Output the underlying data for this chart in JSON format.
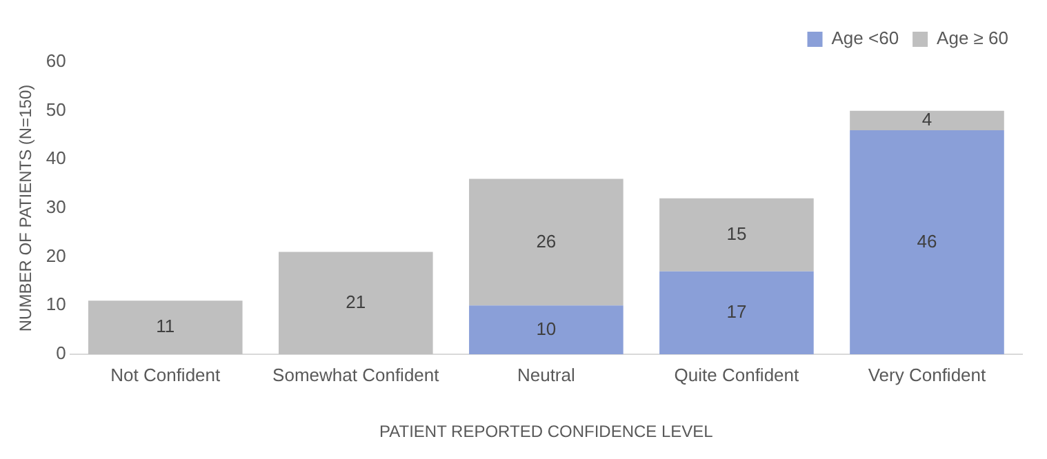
{
  "chart_data": {
    "type": "bar",
    "stacked": true,
    "xlabel": "PATIENT REPORTED CONFIDENCE LEVEL",
    "ylabel": "NUMBER OF PATIENTS (N=150)",
    "categories": [
      "Not Confident",
      "Somewhat Confident",
      "Neutral",
      "Quite Confident",
      "Very Confident"
    ],
    "series": [
      {
        "name": "Age <60",
        "color": "#8a9fd8",
        "values": [
          0,
          0,
          10,
          17,
          46
        ],
        "value_labels": [
          null,
          null,
          "10",
          "17",
          "46"
        ]
      },
      {
        "name": "Age ≥ 60",
        "color": "#bfbfbf",
        "values": [
          11,
          21,
          26,
          15,
          4
        ],
        "value_labels": [
          "11",
          "21",
          "26",
          "15",
          "4"
        ]
      }
    ],
    "ylim": [
      0,
      60
    ],
    "yticks": [
      0,
      10,
      20,
      30,
      40,
      50,
      60
    ],
    "grid": false,
    "legend": "top right"
  }
}
